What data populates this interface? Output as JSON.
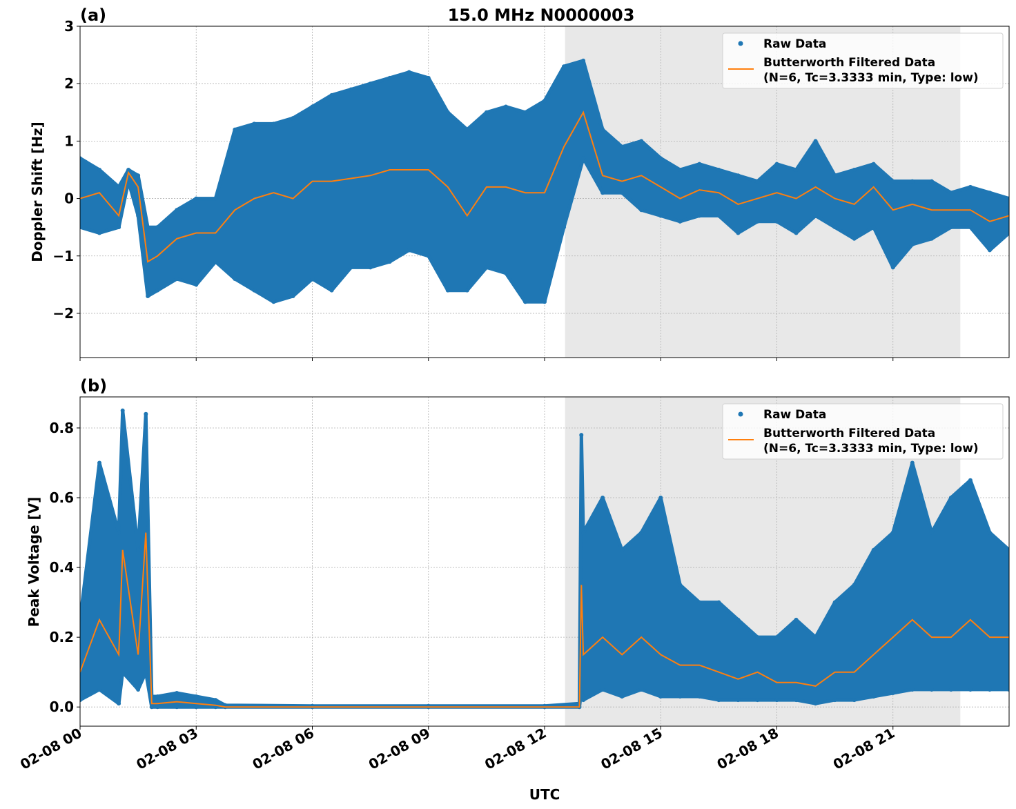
{
  "chart_data": [
    {
      "type": "scatter",
      "panel_label": "(a)",
      "title": "15.0 MHz N0000003",
      "xlabel": "",
      "ylabel": "Doppler Shift [Hz]",
      "ylim": [
        -2.77,
        3.0
      ],
      "xlim_hours": [
        0,
        24
      ],
      "yticks": [
        -2,
        -1,
        0,
        1,
        2,
        3
      ],
      "ytick_labels": [
        "−2",
        "−1",
        "0",
        "1",
        "2",
        "3"
      ],
      "grid": true,
      "legend_position": "top-right",
      "shaded_interval_hours": [
        12.53,
        22.74
      ],
      "series": [
        {
          "name": "Raw Data",
          "kind": "scatter",
          "color": "#1f77b4"
        },
        {
          "name": "Butterworth Filtered Data\n(N=6, Tc=3.3333 min, Type: low)",
          "kind": "line",
          "color": "#ff7f0e"
        }
      ],
      "legend": {
        "raw": "Raw Data",
        "filtered_line1": "Butterworth Filtered Data",
        "filtered_line2": "(N=6, Tc=3.3333 min, Type: low)"
      },
      "points_hours_filtered_rawmin_rawmax": [
        [
          0,
          0,
          -0.5,
          0.7
        ],
        [
          0.5,
          0.1,
          -0.6,
          0.5
        ],
        [
          1.0,
          -0.3,
          -0.5,
          0.2
        ],
        [
          1.25,
          0.45,
          0.3,
          0.5
        ],
        [
          1.5,
          0.2,
          -0.3,
          0.4
        ],
        [
          1.75,
          -1.1,
          -1.7,
          -0.5
        ],
        [
          2.0,
          -1.0,
          -1.6,
          -0.5
        ],
        [
          2.5,
          -0.7,
          -1.4,
          -0.2
        ],
        [
          3.0,
          -0.6,
          -1.5,
          0.0
        ],
        [
          3.5,
          -0.6,
          -1.1,
          0.0
        ],
        [
          4.0,
          -0.2,
          -1.4,
          1.2
        ],
        [
          4.5,
          0.0,
          -1.6,
          1.3
        ],
        [
          5.0,
          0.1,
          -1.8,
          1.3
        ],
        [
          5.5,
          0.0,
          -1.7,
          1.4
        ],
        [
          6.0,
          0.3,
          -1.4,
          1.6
        ],
        [
          6.5,
          0.3,
          -1.6,
          1.8
        ],
        [
          7.0,
          0.35,
          -1.2,
          1.9
        ],
        [
          7.5,
          0.4,
          -1.2,
          2.0
        ],
        [
          8.0,
          0.5,
          -1.1,
          2.1
        ],
        [
          8.5,
          0.5,
          -0.9,
          2.2
        ],
        [
          9.0,
          0.5,
          -1.0,
          2.1
        ],
        [
          9.5,
          0.2,
          -1.6,
          1.5
        ],
        [
          10.0,
          -0.3,
          -1.6,
          1.2
        ],
        [
          10.5,
          0.2,
          -1.2,
          1.5
        ],
        [
          11.0,
          0.2,
          -1.3,
          1.6
        ],
        [
          11.5,
          0.1,
          -1.8,
          1.5
        ],
        [
          12.0,
          0.1,
          -1.8,
          1.7
        ],
        [
          12.5,
          0.9,
          -0.5,
          2.3
        ],
        [
          13.0,
          1.5,
          0.7,
          2.4
        ],
        [
          13.5,
          0.4,
          0.1,
          1.2
        ],
        [
          14.0,
          0.3,
          0.1,
          0.9
        ],
        [
          14.5,
          0.4,
          -0.2,
          1.0
        ],
        [
          15.0,
          0.2,
          -0.3,
          0.7
        ],
        [
          15.5,
          0.0,
          -0.4,
          0.5
        ],
        [
          16.0,
          0.15,
          -0.3,
          0.6
        ],
        [
          16.5,
          0.1,
          -0.3,
          0.5
        ],
        [
          17.0,
          -0.1,
          -0.6,
          0.4
        ],
        [
          17.5,
          0.0,
          -0.4,
          0.3
        ],
        [
          18.0,
          0.1,
          -0.4,
          0.6
        ],
        [
          18.5,
          0.0,
          -0.6,
          0.5
        ],
        [
          19.0,
          0.2,
          -0.3,
          1.0
        ],
        [
          19.5,
          0.0,
          -0.5,
          0.4
        ],
        [
          20.0,
          -0.1,
          -0.7,
          0.5
        ],
        [
          20.5,
          0.2,
          -0.5,
          0.6
        ],
        [
          21.0,
          -0.2,
          -1.2,
          0.3
        ],
        [
          21.5,
          -0.1,
          -0.8,
          0.3
        ],
        [
          22.0,
          -0.2,
          -0.7,
          0.3
        ],
        [
          22.5,
          -0.2,
          -0.5,
          0.1
        ],
        [
          23.0,
          -0.2,
          -0.5,
          0.2
        ],
        [
          23.5,
          -0.4,
          -0.9,
          0.1
        ],
        [
          24.0,
          -0.3,
          -0.6,
          0.0
        ]
      ]
    },
    {
      "type": "scatter",
      "panel_label": "(b)",
      "title": "",
      "xlabel": "UTC",
      "ylabel": "Peak Voltage [V]",
      "ylim": [
        -0.055,
        0.889
      ],
      "xlim_hours": [
        0,
        24
      ],
      "yticks": [
        0.0,
        0.2,
        0.4,
        0.6,
        0.8
      ],
      "ytick_labels": [
        "0.0",
        "0.2",
        "0.4",
        "0.6",
        "0.8"
      ],
      "xtick_labels": [
        "02-08 00",
        "02-08 03",
        "02-08 06",
        "02-08 09",
        "02-08 12",
        "02-08 15",
        "02-08 18",
        "02-08 21"
      ],
      "xtick_hours": [
        0,
        3,
        6,
        9,
        12,
        15,
        18,
        21
      ],
      "grid": true,
      "legend_position": "top-right",
      "shaded_interval_hours": [
        12.53,
        22.74
      ],
      "series": [
        {
          "name": "Raw Data",
          "kind": "scatter",
          "color": "#1f77b4"
        },
        {
          "name": "Butterworth Filtered Data\n(N=6, Tc=3.3333 min, Type: low)",
          "kind": "line",
          "color": "#ff7f0e"
        }
      ],
      "legend": {
        "raw": "Raw Data",
        "filtered_line1": "Butterworth Filtered Data",
        "filtered_line2": "(N=6, Tc=3.3333 min, Type: low)"
      },
      "points_hours_filtered_rawmin_rawmax": [
        [
          0,
          0.1,
          0.02,
          0.25
        ],
        [
          0.5,
          0.25,
          0.05,
          0.7
        ],
        [
          1.0,
          0.15,
          0.01,
          0.5
        ],
        [
          1.1,
          0.45,
          0.1,
          0.85
        ],
        [
          1.5,
          0.15,
          0.05,
          0.45
        ],
        [
          1.7,
          0.5,
          0.1,
          0.84
        ],
        [
          1.85,
          0.01,
          0.0,
          0.03
        ],
        [
          2.0,
          0.01,
          0.0,
          0.03
        ],
        [
          2.5,
          0.015,
          0.0,
          0.04
        ],
        [
          3.0,
          0.01,
          0.0,
          0.03
        ],
        [
          3.5,
          0.005,
          0.0,
          0.02
        ],
        [
          3.75,
          0.0,
          0.0,
          0.005
        ],
        [
          6.0,
          0.0,
          0.0,
          0.003
        ],
        [
          9.0,
          0.0,
          0.0,
          0.003
        ],
        [
          12.0,
          0.0,
          0.0,
          0.003
        ],
        [
          12.9,
          0.0,
          0.0,
          0.01
        ],
        [
          12.95,
          0.35,
          0.05,
          0.78
        ],
        [
          13.0,
          0.15,
          0.02,
          0.5
        ],
        [
          13.5,
          0.2,
          0.05,
          0.6
        ],
        [
          14.0,
          0.15,
          0.03,
          0.45
        ],
        [
          14.5,
          0.2,
          0.05,
          0.5
        ],
        [
          15.0,
          0.15,
          0.03,
          0.6
        ],
        [
          15.5,
          0.12,
          0.03,
          0.35
        ],
        [
          16.0,
          0.12,
          0.03,
          0.3
        ],
        [
          16.5,
          0.1,
          0.02,
          0.3
        ],
        [
          17.0,
          0.08,
          0.02,
          0.25
        ],
        [
          17.5,
          0.1,
          0.02,
          0.2
        ],
        [
          18.0,
          0.07,
          0.02,
          0.2
        ],
        [
          18.5,
          0.07,
          0.02,
          0.25
        ],
        [
          19.0,
          0.06,
          0.01,
          0.2
        ],
        [
          19.5,
          0.1,
          0.02,
          0.3
        ],
        [
          20.0,
          0.1,
          0.02,
          0.35
        ],
        [
          20.5,
          0.15,
          0.03,
          0.45
        ],
        [
          21.0,
          0.2,
          0.04,
          0.5
        ],
        [
          21.5,
          0.25,
          0.05,
          0.7
        ],
        [
          22.0,
          0.2,
          0.05,
          0.5
        ],
        [
          22.5,
          0.2,
          0.05,
          0.6
        ],
        [
          23.0,
          0.25,
          0.05,
          0.65
        ],
        [
          23.5,
          0.2,
          0.05,
          0.5
        ],
        [
          24.0,
          0.2,
          0.05,
          0.45
        ]
      ]
    }
  ]
}
